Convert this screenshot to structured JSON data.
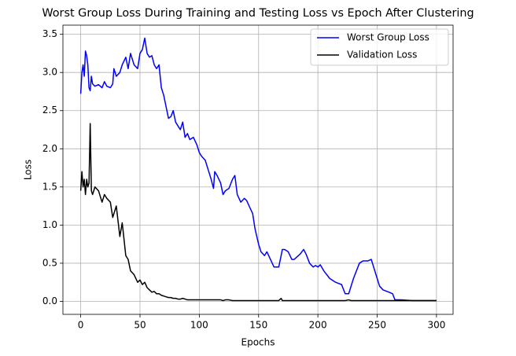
{
  "chart_data": {
    "type": "line",
    "title": "Worst Group Loss During Training and Testing Loss vs Epoch After Clustering",
    "xlabel": "Epochs",
    "ylabel": "Loss",
    "x": [
      0,
      1,
      2,
      3,
      4,
      5,
      6,
      7,
      8,
      9,
      10,
      12,
      15,
      18,
      20,
      22,
      25,
      27,
      28,
      30,
      33,
      35,
      38,
      40,
      42,
      45,
      48,
      50,
      52,
      54,
      56,
      58,
      60,
      62,
      64,
      66,
      68,
      70,
      72,
      74,
      76,
      78,
      80,
      82,
      84,
      86,
      88,
      90,
      92,
      95,
      98,
      100,
      102,
      105,
      108,
      110,
      112,
      113,
      115,
      118,
      120,
      122,
      125,
      128,
      130,
      132,
      135,
      138,
      140,
      142,
      145,
      147,
      150,
      152,
      155,
      157,
      160,
      163,
      167,
      169,
      170,
      172,
      175,
      178,
      180,
      185,
      188,
      190,
      193,
      196,
      198,
      200,
      202,
      205,
      210,
      215,
      220,
      223,
      226,
      228,
      230,
      235,
      238,
      242,
      245,
      246,
      248,
      252,
      255,
      260,
      263,
      265,
      270,
      280,
      290,
      300
    ],
    "series": [
      {
        "name": "Worst Group Loss",
        "color": "#0000ff",
        "values": [
          2.72,
          3.0,
          3.1,
          2.95,
          3.28,
          3.22,
          3.1,
          2.8,
          2.76,
          2.95,
          2.85,
          2.82,
          2.84,
          2.8,
          2.88,
          2.82,
          2.8,
          2.85,
          3.05,
          2.95,
          3.0,
          3.1,
          3.2,
          3.05,
          3.25,
          3.1,
          3.05,
          3.25,
          3.3,
          3.45,
          3.25,
          3.2,
          3.22,
          3.1,
          3.05,
          3.1,
          2.8,
          2.7,
          2.55,
          2.4,
          2.42,
          2.5,
          2.35,
          2.3,
          2.25,
          2.35,
          2.15,
          2.2,
          2.12,
          2.15,
          2.05,
          1.95,
          1.9,
          1.85,
          1.7,
          1.6,
          1.48,
          1.7,
          1.65,
          1.55,
          1.4,
          1.45,
          1.48,
          1.6,
          1.65,
          1.4,
          1.3,
          1.35,
          1.32,
          1.25,
          1.15,
          0.95,
          0.75,
          0.65,
          0.6,
          0.65,
          0.55,
          0.45,
          0.45,
          0.6,
          0.68,
          0.68,
          0.65,
          0.55,
          0.55,
          0.62,
          0.68,
          0.62,
          0.5,
          0.45,
          0.47,
          0.45,
          0.48,
          0.4,
          0.3,
          0.25,
          0.22,
          0.1,
          0.1,
          0.2,
          0.3,
          0.5,
          0.53,
          0.53,
          0.55,
          0.5,
          0.4,
          0.2,
          0.15,
          0.12,
          0.1,
          0.02,
          0.02,
          0.01,
          0.01,
          0.01
        ]
      },
      {
        "name": "Validation Loss",
        "color": "#000000",
        "values": [
          1.45,
          1.7,
          1.5,
          1.6,
          1.4,
          1.6,
          1.5,
          1.55,
          2.33,
          1.45,
          1.4,
          1.5,
          1.45,
          1.3,
          1.4,
          1.35,
          1.3,
          1.1,
          1.15,
          1.25,
          0.85,
          1.03,
          0.6,
          0.55,
          0.4,
          0.35,
          0.25,
          0.28,
          0.22,
          0.25,
          0.18,
          0.15,
          0.12,
          0.13,
          0.1,
          0.1,
          0.08,
          0.07,
          0.06,
          0.05,
          0.05,
          0.04,
          0.04,
          0.03,
          0.03,
          0.04,
          0.03,
          0.02,
          0.02,
          0.02,
          0.02,
          0.02,
          0.02,
          0.02,
          0.02,
          0.02,
          0.02,
          0.02,
          0.02,
          0.02,
          0.01,
          0.02,
          0.02,
          0.01,
          0.01,
          0.01,
          0.01,
          0.01,
          0.01,
          0.01,
          0.01,
          0.01,
          0.01,
          0.01,
          0.01,
          0.01,
          0.01,
          0.01,
          0.01,
          0.04,
          0.01,
          0.01,
          0.01,
          0.01,
          0.01,
          0.01,
          0.01,
          0.01,
          0.01,
          0.01,
          0.01,
          0.01,
          0.01,
          0.01,
          0.01,
          0.01,
          0.01,
          0.01,
          0.02,
          0.01,
          0.01,
          0.01,
          0.01,
          0.01,
          0.01,
          0.01,
          0.01,
          0.01,
          0.01,
          0.01,
          0.01,
          0.01,
          0.01,
          0.01,
          0.01,
          0.01
        ]
      }
    ],
    "xlim": [
      -15,
      314
    ],
    "ylim": [
      -0.17,
      3.62
    ],
    "xticks": [
      0,
      50,
      100,
      150,
      200,
      250,
      300
    ],
    "yticks": [
      {
        "value": 0,
        "label": "0.0"
      },
      {
        "value": 0.5,
        "label": "0.5"
      },
      {
        "value": 1,
        "label": "1.0"
      },
      {
        "value": 1.5,
        "label": "1.5"
      },
      {
        "value": 2,
        "label": "2.0"
      },
      {
        "value": 2.5,
        "label": "2.5"
      },
      {
        "value": 3,
        "label": "3.0"
      },
      {
        "value": 3.5,
        "label": "3.5"
      }
    ],
    "grid": true,
    "legend": "upper right"
  }
}
